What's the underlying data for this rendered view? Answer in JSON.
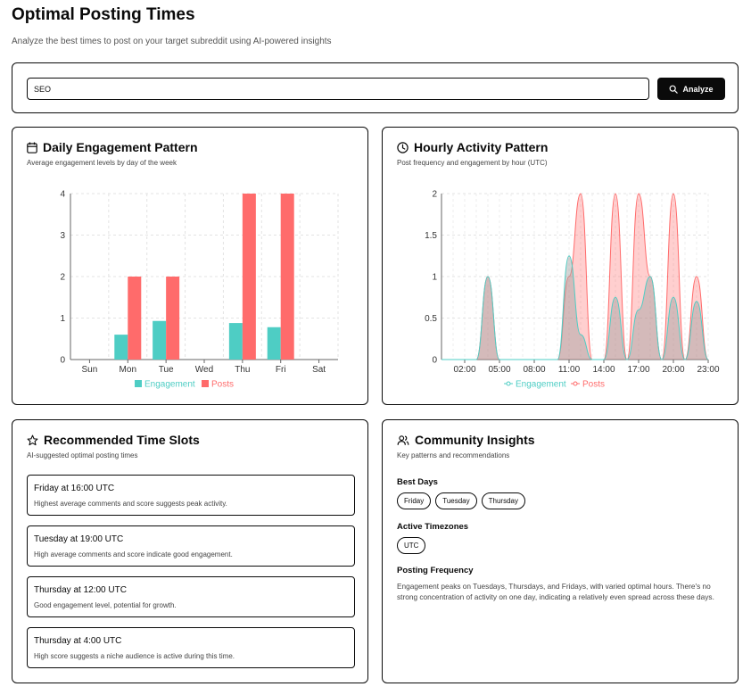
{
  "page": {
    "title": "Optimal Posting Times",
    "subtitle": "Analyze the best times to post on your target subreddit using AI-powered insights"
  },
  "search": {
    "value": "SEO",
    "button_label": "Analyze",
    "button_icon": "search-icon"
  },
  "daily": {
    "title": "Daily Engagement Pattern",
    "subtitle": "Average engagement levels by day of the week",
    "icon": "calendar-icon"
  },
  "hourly": {
    "title": "Hourly Activity Pattern",
    "subtitle": "Post frequency and engagement by hour (UTC)",
    "icon": "clock-icon"
  },
  "slots": {
    "title": "Recommended Time Slots",
    "subtitle": "AI-suggested optimal posting times",
    "icon": "star-icon",
    "items": [
      {
        "title": "Friday at 16:00 UTC",
        "desc": "Highest average comments and score suggests peak activity."
      },
      {
        "title": "Tuesday at 19:00 UTC",
        "desc": "High average comments and score indicate good engagement."
      },
      {
        "title": "Thursday at 12:00 UTC",
        "desc": "Good engagement level, potential for growth."
      },
      {
        "title": "Thursday at 4:00 UTC",
        "desc": "High score suggests a niche audience is active during this time."
      }
    ]
  },
  "insights": {
    "title": "Community Insights",
    "subtitle": "Key patterns and recommendations",
    "icon": "users-icon",
    "best_days_label": "Best Days",
    "best_days": [
      "Friday",
      "Tuesday",
      "Thursday"
    ],
    "timezones_label": "Active Timezones",
    "timezones": [
      "UTC"
    ],
    "frequency_label": "Posting Frequency",
    "frequency_text": "Engagement peaks on Tuesdays, Thursdays, and Fridays, with varied optimal hours. There's no strong concentration of activity on one day, indicating a relatively even spread across these days."
  },
  "colors": {
    "engagement": "#4ecdc4",
    "posts": "#ff6b6b",
    "ink": "#0a0a0a"
  },
  "chart_data": [
    {
      "type": "bar",
      "categories": [
        "Sun",
        "Mon",
        "Tue",
        "Wed",
        "Thu",
        "Fri",
        "Sat"
      ],
      "series": [
        {
          "name": "Engagement",
          "values": [
            0,
            0.6,
            0.93,
            0,
            0.88,
            0.78,
            0
          ]
        },
        {
          "name": "Posts",
          "values": [
            0,
            2,
            2,
            0,
            4,
            4,
            0
          ]
        }
      ],
      "ylim": [
        0,
        4
      ],
      "yticks": [
        0,
        1,
        2,
        3,
        4
      ],
      "grid": true,
      "legend": "bottom"
    },
    {
      "type": "area",
      "x": [
        "00:00",
        "01:00",
        "02:00",
        "03:00",
        "04:00",
        "05:00",
        "06:00",
        "07:00",
        "08:00",
        "09:00",
        "10:00",
        "11:00",
        "12:00",
        "13:00",
        "14:00",
        "15:00",
        "16:00",
        "17:00",
        "18:00",
        "19:00",
        "20:00",
        "21:00",
        "22:00",
        "23:00"
      ],
      "xticks": [
        "02:00",
        "05:00",
        "08:00",
        "11:00",
        "14:00",
        "17:00",
        "20:00",
        "23:00"
      ],
      "series": [
        {
          "name": "Engagement",
          "values": [
            0,
            0,
            0,
            0,
            1,
            0,
            0,
            0,
            0,
            0,
            0,
            1.25,
            0.3,
            0,
            0,
            0.75,
            0,
            0.6,
            1.0,
            0,
            0.75,
            0,
            0.7,
            0
          ]
        },
        {
          "name": "Posts",
          "values": [
            0,
            0,
            0,
            0,
            1,
            0,
            0,
            0,
            0,
            0,
            0,
            1,
            2,
            0,
            0,
            2,
            0,
            2,
            1,
            0,
            2,
            0,
            1,
            0
          ]
        }
      ],
      "ylim": [
        0,
        2
      ],
      "yticks": [
        0,
        0.5,
        1,
        1.5,
        2
      ],
      "grid": true,
      "legend": "bottom"
    }
  ]
}
